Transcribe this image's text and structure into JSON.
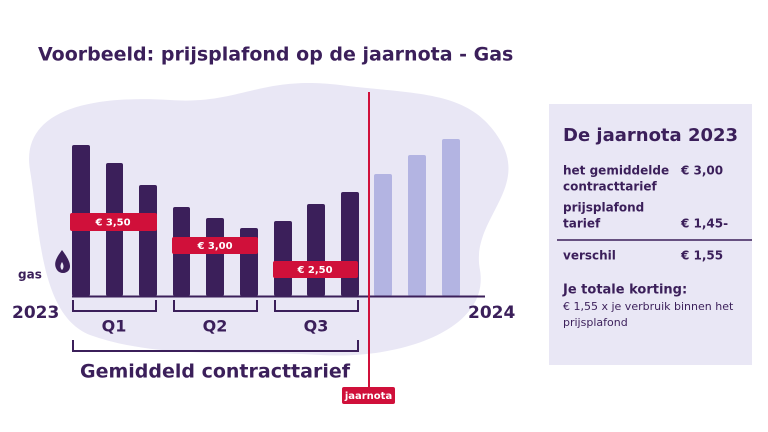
{
  "title": "Voorbeeld: prijsplafond op de jaarnota  - Gas",
  "illustration": {
    "unit_label": "gas",
    "start_year": "2023",
    "end_year": "2024",
    "quarters": [
      {
        "label": "Q1",
        "price_label": "€ 3,50"
      },
      {
        "label": "Q2",
        "price_label": "€ 3,00"
      },
      {
        "label": "Q3",
        "price_label": "€ 2,50"
      }
    ],
    "average_label": "Gemiddeld contracttarief",
    "marker_label": "jaarnota"
  },
  "panel": {
    "title": "De jaarnota 2023",
    "rows": [
      {
        "label": [
          "het gemiddelde",
          "contracttarief"
        ],
        "value": "€ 3,00"
      },
      {
        "label": [
          "prijsplafond",
          "tarief"
        ],
        "value": "€ 1,45-"
      },
      {
        "label": [
          "verschil"
        ],
        "value": "€ 1,55"
      }
    ],
    "discount_title": "Je totale korting:",
    "discount_text": [
      "€ 1,55 x je verbruik binnen het",
      "prijsplafond"
    ]
  }
}
